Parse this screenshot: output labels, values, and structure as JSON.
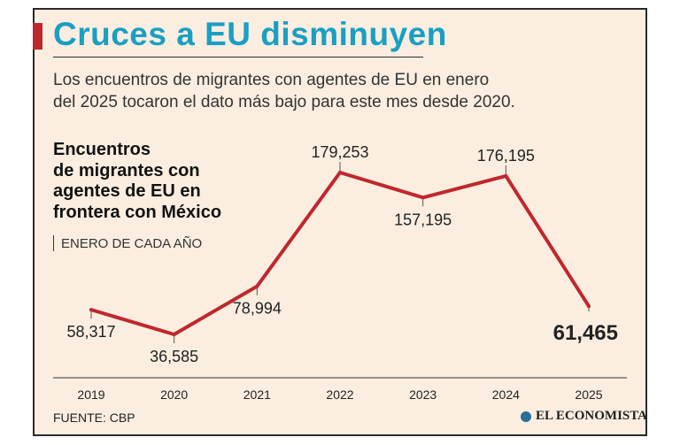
{
  "header": {
    "title": "Cruces a EU disminuyen",
    "subtitle": "Los encuentros de migrantes con agentes de EU en enero\ndel 2025 tocaron el dato más bajo para este mes desde 2020."
  },
  "chart_heading": {
    "title": "Encuentros\nde migrantes con\nagentes de EU en\nfrontera con México",
    "subtitle": "ENERO DE CADA AÑO"
  },
  "chart_data": {
    "type": "line",
    "title": "Encuentros de migrantes con agentes de EU en frontera con México",
    "subtitle": "ENERO DE CADA AÑO",
    "categories": [
      "2019",
      "2020",
      "2021",
      "2022",
      "2023",
      "2024",
      "2025"
    ],
    "values": [
      58317,
      36585,
      78994,
      179253,
      157195,
      176195,
      61465
    ],
    "data_labels": [
      "58,317",
      "36,585",
      "78,994",
      "179,253",
      "157,195",
      "176,195",
      "61,465"
    ],
    "highlight_index": 6,
    "ylim": [
      0,
      190000
    ],
    "grid": false,
    "line_color": "#c0272d"
  },
  "footer": {
    "source": "FUENTE: CBP",
    "logo_text": "EL ECONOMISTA"
  },
  "colors": {
    "title": "#1a9fc4",
    "accent": "#c0272d",
    "background": "#fbeee0"
  }
}
